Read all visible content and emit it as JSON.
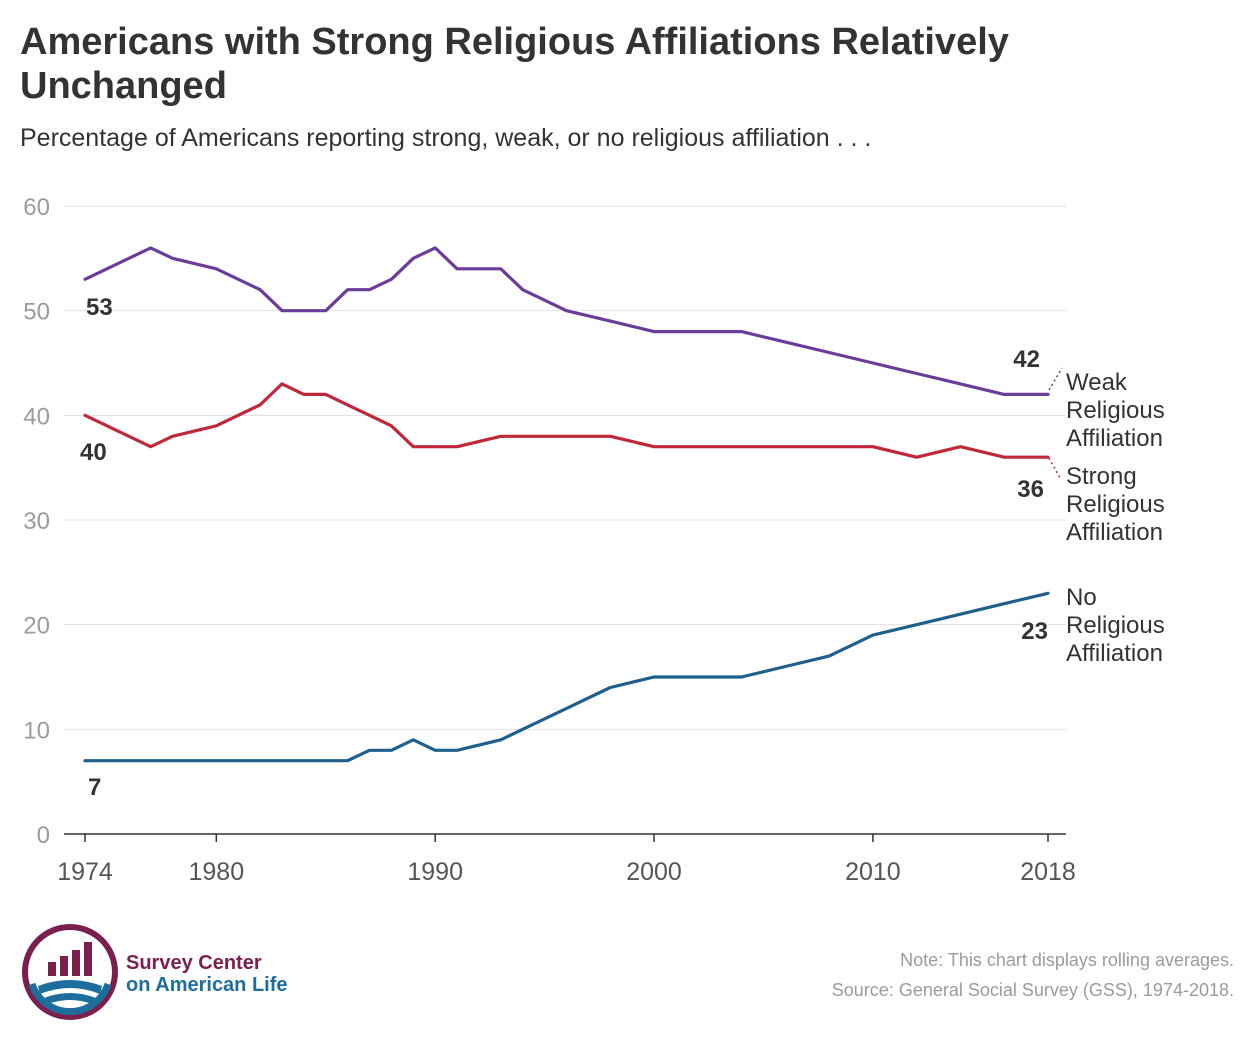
{
  "title": "Americans with Strong Religious Affiliations Relatively Unchanged",
  "subtitle": "Percentage of Americans reporting strong, weak, or no religious affiliation . . .",
  "note": "Note: This chart displays rolling averages.",
  "source": "Source: General Social Survey (GSS), 1974-2018.",
  "brand": {
    "line1": "Survey Center",
    "line2": "on American Life"
  },
  "colors": {
    "weak": "#6a3d9a",
    "strong": "#c0283a",
    "none": "#1f5f8b",
    "grid": "#e0e0e0",
    "tick": "#9b9b9b",
    "brand_maroon": "#7b1f4e",
    "brand_blue": "#1d6e9c"
  },
  "chart_data": {
    "type": "line",
    "xlim": [
      1974,
      2018
    ],
    "ylim": [
      0,
      60
    ],
    "y_ticks": [
      "0",
      "10",
      "20",
      "30",
      "40",
      "50",
      "60"
    ],
    "x_ticks": [
      "1974",
      "1980",
      "1990",
      "2000",
      "2010",
      "2018"
    ],
    "grid": "horizontal",
    "series": [
      {
        "key": "weak",
        "name": "Weak Religious Affiliation",
        "label_lines": [
          "Weak",
          "Religious",
          "Affiliation"
        ],
        "start_label": "53",
        "end_label": "42",
        "x": [
          1974,
          1977,
          1978,
          1980,
          1982,
          1983,
          1984,
          1985,
          1986,
          1987,
          1988,
          1989,
          1990,
          1991,
          1993,
          1994,
          1996,
          1998,
          2000,
          2002,
          2004,
          2006,
          2008,
          2010,
          2012,
          2014,
          2016,
          2018
        ],
        "y": [
          53,
          56,
          55,
          54,
          52,
          50,
          50,
          50,
          52,
          52,
          53,
          55,
          56,
          54,
          54,
          52,
          50,
          49,
          48,
          48,
          48,
          47,
          46,
          45,
          44,
          43,
          42,
          42
        ]
      },
      {
        "key": "strong",
        "name": "Strong Religious Affiliation",
        "label_lines": [
          "Strong",
          "Religious",
          "Affiliation"
        ],
        "start_label": "40",
        "end_label": "36",
        "x": [
          1974,
          1977,
          1978,
          1980,
          1982,
          1983,
          1984,
          1985,
          1986,
          1987,
          1988,
          1989,
          1990,
          1991,
          1993,
          1994,
          1996,
          1998,
          2000,
          2002,
          2004,
          2006,
          2008,
          2010,
          2012,
          2014,
          2016,
          2018
        ],
        "y": [
          40,
          37,
          38,
          39,
          41,
          43,
          42,
          42,
          41,
          40,
          39,
          37,
          37,
          37,
          38,
          38,
          38,
          38,
          37,
          37,
          37,
          37,
          37,
          37,
          36,
          37,
          36,
          36
        ]
      },
      {
        "key": "none",
        "name": "No Religious Affiliation",
        "label_lines": [
          "No",
          "Religious",
          "Affiliation"
        ],
        "start_label": "7",
        "end_label": "23",
        "x": [
          1974,
          1977,
          1978,
          1980,
          1982,
          1983,
          1984,
          1985,
          1986,
          1987,
          1988,
          1989,
          1990,
          1991,
          1993,
          1994,
          1996,
          1998,
          2000,
          2002,
          2004,
          2006,
          2008,
          2010,
          2012,
          2014,
          2016,
          2018
        ],
        "y": [
          7,
          7,
          7,
          7,
          7,
          7,
          7,
          7,
          7,
          8,
          8,
          9,
          8,
          8,
          9,
          10,
          12,
          14,
          15,
          15,
          15,
          16,
          17,
          19,
          20,
          21,
          22,
          23
        ]
      }
    ]
  }
}
